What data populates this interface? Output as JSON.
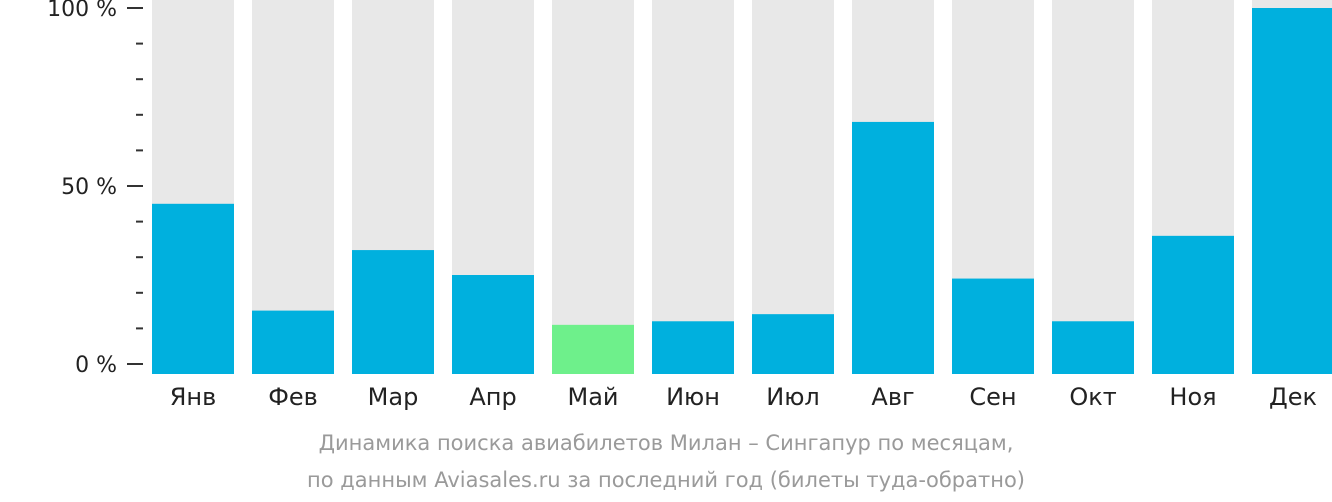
{
  "chart_data": {
    "type": "bar",
    "categories": [
      "Янв",
      "Фев",
      "Мар",
      "Апр",
      "Май",
      "Июн",
      "Июл",
      "Авг",
      "Сен",
      "Окт",
      "Ноя",
      "Дек"
    ],
    "values": [
      45,
      15,
      32,
      25,
      11,
      12,
      14,
      68,
      24,
      12,
      36,
      100
    ],
    "ylim": [
      0,
      100
    ],
    "yticks": [
      {
        "value": 100,
        "label": "100 %"
      },
      {
        "value": 50,
        "label": "50 %"
      },
      {
        "value": 0,
        "label": "0 %"
      }
    ],
    "minor_tick_step": 10,
    "highlight_index": 4,
    "colors": {
      "bar": "#00b0de",
      "highlight": "#6ef08b",
      "track": "#e8e8e8",
      "axis": "#333333"
    }
  },
  "caption": {
    "line1": "Динамика поиска авиабилетов Милан – Сингапур по месяцам,",
    "line2": "по данным Aviasales.ru за последний год (билеты туда-обратно)"
  }
}
